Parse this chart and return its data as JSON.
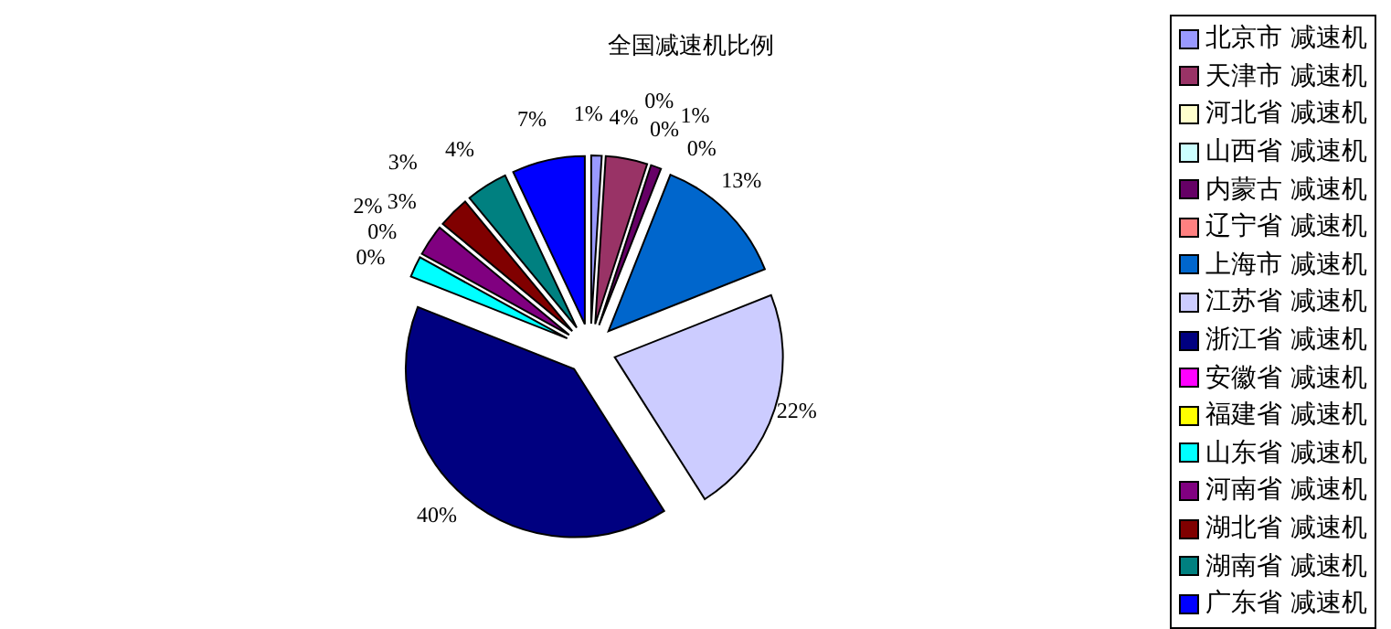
{
  "chart_data": {
    "type": "pie",
    "title": "全国减速机比例",
    "categories": [
      "北京市 减速机",
      "天津市 减速机",
      "河北省 减速机",
      "山西省 减速机",
      "内蒙古 减速机",
      "辽宁省 减速机",
      "上海市 减速机",
      "江苏省 减速机",
      "浙江省 减速机",
      "安徽省 减速机",
      "福建省 减速机",
      "山东省 减速机",
      "河南省 减速机",
      "湖北省 减速机",
      "湖南省 减速机",
      "广东省 减速机"
    ],
    "values": [
      1,
      4,
      0,
      0,
      1,
      0,
      13,
      22,
      40,
      0,
      0,
      2,
      3,
      3,
      4,
      7
    ],
    "value_labels": [
      "1%",
      "4%",
      "0%",
      "0%",
      "1%",
      "0%",
      "13%",
      "22%",
      "40%",
      "0%",
      "0%",
      "2%",
      "3%",
      "3%",
      "4%",
      "7%"
    ],
    "colors": [
      "#9999ff",
      "#993366",
      "#ffffcc",
      "#ccffff",
      "#660066",
      "#ff8080",
      "#0066cc",
      "#ccccff",
      "#000080",
      "#ff00ff",
      "#ffff00",
      "#00ffff",
      "#800080",
      "#800000",
      "#008080",
      "#0000ff"
    ],
    "legend": "right"
  }
}
